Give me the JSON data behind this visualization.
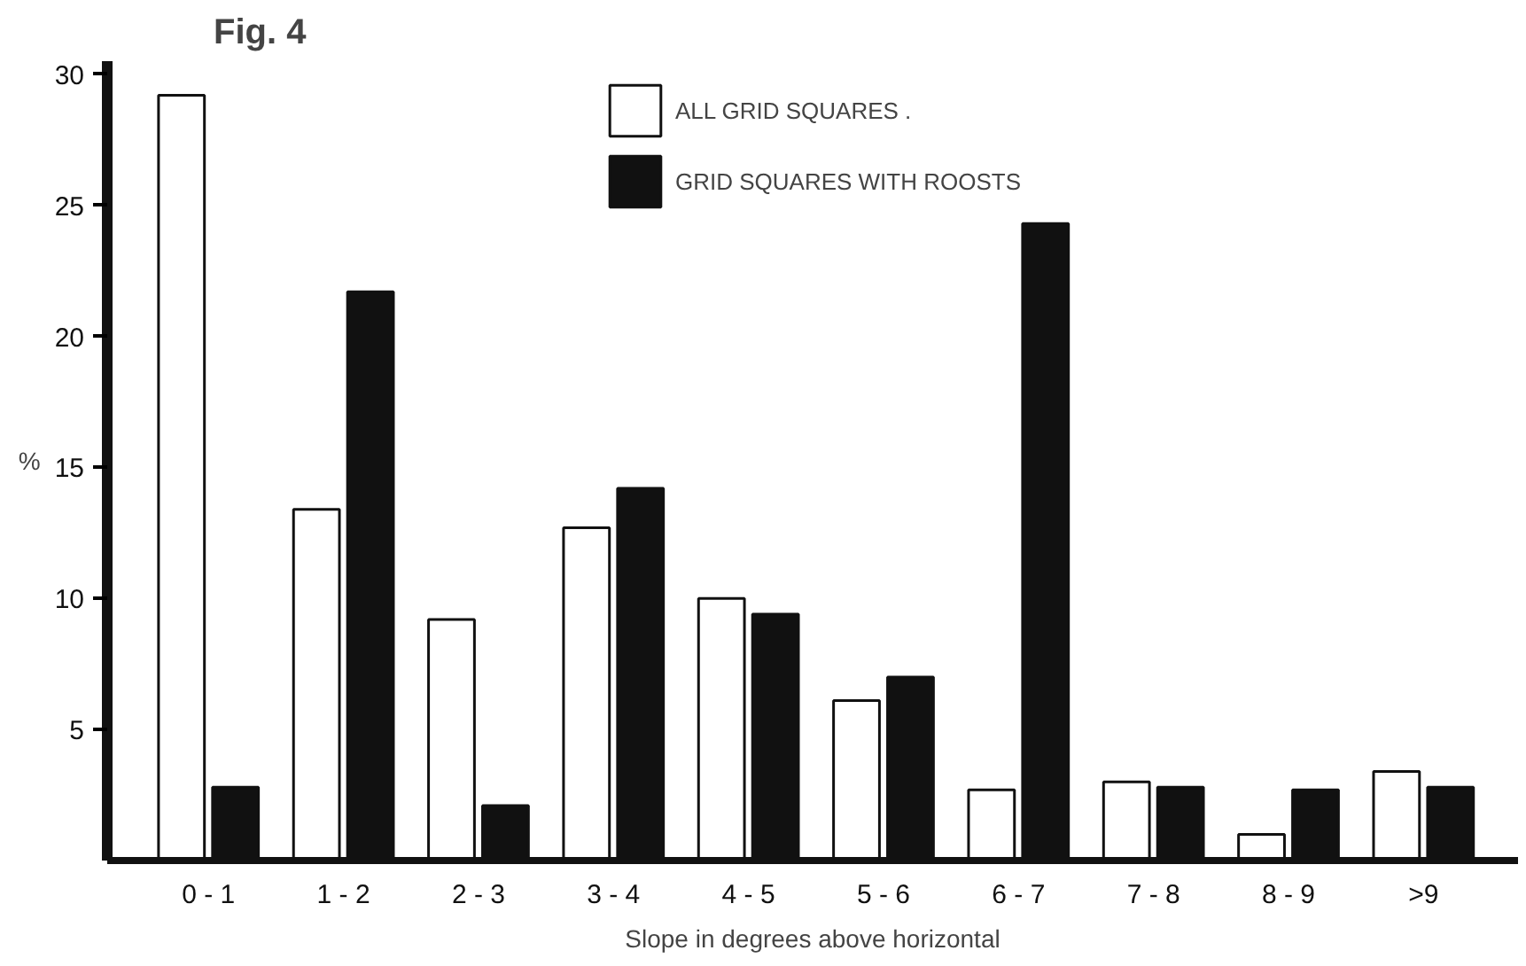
{
  "chart_data": {
    "type": "bar",
    "title": "Fig. 4",
    "xlabel": "Slope in degrees above horizontal",
    "ylabel": "%",
    "categories": [
      "0 - 1",
      "1 - 2",
      "2 - 3",
      "3 - 4",
      "4 - 5",
      "5 - 6",
      "6 - 7",
      "7 - 8",
      "8 - 9",
      ">9"
    ],
    "series": [
      {
        "name": "ALL GRID SQUARES .",
        "color": "#ffffff",
        "values": [
          29.2,
          13.4,
          9.2,
          12.7,
          10.0,
          6.1,
          2.7,
          3.0,
          1.0,
          3.4
        ]
      },
      {
        "name": "GRID SQUARES WITH ROOSTS",
        "color": "#111111",
        "values": [
          2.8,
          21.7,
          2.1,
          14.2,
          9.4,
          7.0,
          24.3,
          2.8,
          2.7,
          2.8
        ]
      }
    ],
    "ylim": [
      0,
      30.5
    ],
    "yticks": [
      5,
      10,
      15,
      20,
      25,
      30
    ],
    "grid": false,
    "legend": "top"
  }
}
